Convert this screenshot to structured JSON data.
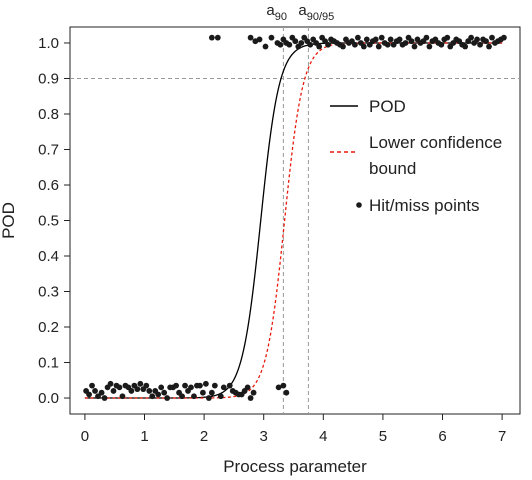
{
  "chart_data": {
    "type": "scatter",
    "title": "",
    "xlabel": "Process parameter",
    "ylabel": "POD",
    "xlim": [
      -0.25,
      7.3
    ],
    "ylim": [
      -0.045,
      1.045
    ],
    "xticks": [
      0,
      1,
      2,
      3,
      4,
      5,
      6,
      7
    ],
    "yticks": [
      0.0,
      0.1,
      0.2,
      0.3,
      0.4,
      0.5,
      0.6,
      0.7,
      0.8,
      0.9,
      1.0
    ],
    "xtick_labels": [
      "0",
      "1",
      "2",
      "3",
      "4",
      "5",
      "6",
      "7"
    ],
    "ytick_labels": [
      "0.0",
      "0.1",
      "0.2",
      "0.3",
      "0.4",
      "0.5",
      "0.6",
      "0.7",
      "0.8",
      "0.9",
      "1.0"
    ],
    "grid": false,
    "pod_curve": {
      "name": "POD",
      "style": "solid",
      "color": "#000000",
      "center": 2.95,
      "slope": 0.155
    },
    "lower_bound_curve": {
      "name": "Lower confidence bound",
      "label_lines": [
        "Lower confidence",
        "bound"
      ],
      "style": "dashed",
      "color": "#e8190b",
      "center": 3.35,
      "slope": 0.155
    },
    "hit_miss_points": {
      "name": "Hit/miss points",
      "points": [
        [
          0.02,
          0.02
        ],
        [
          0.07,
          0.01
        ],
        [
          0.12,
          0.035
        ],
        [
          0.17,
          0.02
        ],
        [
          0.22,
          0.005
        ],
        [
          0.28,
          0.015
        ],
        [
          0.33,
          0.0
        ],
        [
          0.38,
          0.03
        ],
        [
          0.43,
          0.04
        ],
        [
          0.48,
          0.02
        ],
        [
          0.53,
          0.035
        ],
        [
          0.58,
          0.03
        ],
        [
          0.63,
          0.005
        ],
        [
          0.68,
          0.035
        ],
        [
          0.73,
          0.03
        ],
        [
          0.78,
          0.02
        ],
        [
          0.83,
          0.035
        ],
        [
          0.88,
          0.025
        ],
        [
          0.93,
          0.04
        ],
        [
          0.98,
          0.025
        ],
        [
          1.03,
          0.035
        ],
        [
          1.08,
          0.02
        ],
        [
          1.13,
          0.005
        ],
        [
          1.18,
          0.02
        ],
        [
          1.23,
          0.01
        ],
        [
          1.28,
          0.03
        ],
        [
          1.33,
          0.015
        ],
        [
          1.38,
          0.0
        ],
        [
          1.43,
          0.03
        ],
        [
          1.48,
          0.03
        ],
        [
          1.53,
          0.035
        ],
        [
          1.58,
          0.015
        ],
        [
          1.63,
          0.005
        ],
        [
          1.68,
          0.035
        ],
        [
          1.73,
          0.02
        ],
        [
          1.78,
          0.03
        ],
        [
          1.83,
          0.005
        ],
        [
          1.88,
          0.035
        ],
        [
          1.93,
          0.035
        ],
        [
          1.98,
          0.015
        ],
        [
          2.03,
          0.04
        ],
        [
          2.08,
          0.0
        ],
        [
          2.13,
          0.015
        ],
        [
          2.18,
          0.035
        ],
        [
          2.28,
          0.005
        ],
        [
          2.33,
          0.03
        ],
        [
          2.43,
          0.035
        ],
        [
          2.48,
          0.02
        ],
        [
          2.53,
          0.015
        ],
        [
          2.58,
          0.01
        ],
        [
          2.63,
          0.01
        ],
        [
          2.68,
          0.02
        ],
        [
          2.73,
          0.03
        ],
        [
          2.78,
          0.0
        ],
        [
          2.83,
          0.015
        ],
        [
          3.25,
          0.03
        ],
        [
          3.33,
          0.035
        ],
        [
          3.38,
          0.015
        ],
        [
          2.13,
          1.015
        ],
        [
          2.23,
          1.015
        ],
        [
          2.78,
          1.015
        ],
        [
          2.86,
          1.005
        ],
        [
          2.93,
          1.01
        ],
        [
          3.03,
          0.99
        ],
        [
          3.13,
          1.015
        ],
        [
          3.23,
          1.0
        ],
        [
          3.28,
          0.995
        ],
        [
          3.33,
          1.01
        ],
        [
          3.38,
          1.0
        ],
        [
          3.43,
          0.995
        ],
        [
          3.48,
          1.015
        ],
        [
          3.53,
          1.005
        ],
        [
          3.58,
          0.99
        ],
        [
          3.63,
          1.0
        ],
        [
          3.68,
          1.015
        ],
        [
          3.73,
          1.005
        ],
        [
          3.78,
          0.995
        ],
        [
          3.83,
          1.01
        ],
        [
          3.88,
          1.0
        ],
        [
          3.93,
          0.99
        ],
        [
          3.98,
          1.015
        ],
        [
          4.03,
          1.005
        ],
        [
          4.08,
          0.995
        ],
        [
          4.13,
          1.01
        ],
        [
          4.18,
          1.005
        ],
        [
          4.23,
          1.0
        ],
        [
          4.28,
          0.995
        ],
        [
          4.33,
          0.99
        ],
        [
          4.38,
          1.01
        ],
        [
          4.43,
          1.0
        ],
        [
          4.48,
          1.005
        ],
        [
          4.53,
          0.995
        ],
        [
          4.58,
          1.015
        ],
        [
          4.63,
          1.0
        ],
        [
          4.68,
          0.99
        ],
        [
          4.73,
          1.01
        ],
        [
          4.78,
          0.995
        ],
        [
          4.83,
          1.005
        ],
        [
          4.88,
          1.01
        ],
        [
          4.93,
          0.99
        ],
        [
          4.98,
          1.015
        ],
        [
          5.03,
          1.0
        ],
        [
          5.08,
          0.995
        ],
        [
          5.13,
          1.01
        ],
        [
          5.18,
          0.995
        ],
        [
          5.23,
          1.005
        ],
        [
          5.28,
          1.01
        ],
        [
          5.33,
          0.995
        ],
        [
          5.38,
          1.0
        ],
        [
          5.43,
          1.015
        ],
        [
          5.48,
          1.005
        ],
        [
          5.53,
          0.99
        ],
        [
          5.58,
          1.01
        ],
        [
          5.63,
          1.0
        ],
        [
          5.68,
          1.005
        ],
        [
          5.73,
          1.015
        ],
        [
          5.78,
          0.99
        ],
        [
          5.83,
          1.005
        ],
        [
          5.88,
          1.01
        ],
        [
          5.93,
          1.0
        ],
        [
          5.98,
          0.995
        ],
        [
          6.03,
          1.01
        ],
        [
          6.08,
          1.015
        ],
        [
          6.13,
          0.99
        ],
        [
          6.18,
          1.0
        ],
        [
          6.23,
          1.01
        ],
        [
          6.28,
          1.005
        ],
        [
          6.33,
          0.995
        ],
        [
          6.38,
          0.99
        ],
        [
          6.43,
          1.005
        ],
        [
          6.48,
          1.015
        ],
        [
          6.53,
          1.0
        ],
        [
          6.58,
          1.01
        ],
        [
          6.63,
          0.995
        ],
        [
          6.68,
          1.01
        ],
        [
          6.73,
          1.005
        ],
        [
          6.78,
          0.99
        ],
        [
          6.83,
          1.015
        ],
        [
          6.88,
          1.0
        ],
        [
          6.93,
          1.005
        ],
        [
          6.98,
          1.01
        ],
        [
          7.03,
          1.015
        ]
      ]
    },
    "reference_lines": {
      "horizontal": {
        "y": 0.9,
        "style": "dashed",
        "color": "#9a9a9a"
      },
      "vertical": [
        {
          "x": 3.33,
          "label_base": "a",
          "label_sub": "90",
          "style": "dashed",
          "color": "#9a9a9a"
        },
        {
          "x": 3.75,
          "label_base": "a",
          "label_sub": "90/95",
          "style": "dashed",
          "color": "#9a9a9a"
        }
      ]
    },
    "legend": {
      "placement": "right",
      "entries": [
        {
          "label_lines": [
            "POD"
          ],
          "kind": "solid-line"
        },
        {
          "label_lines": [
            "Lower confidence",
            "bound"
          ],
          "kind": "dashed-line"
        },
        {
          "label_lines": [
            "Hit/miss points"
          ],
          "kind": "point"
        }
      ]
    }
  }
}
